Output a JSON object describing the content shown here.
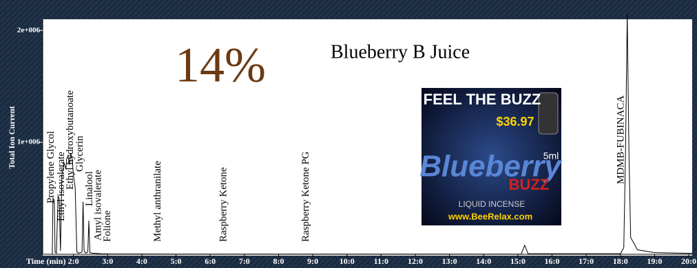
{
  "chart_data": {
    "type": "line",
    "title": "Blueberry B Juice",
    "big_label": "14%",
    "y_label": "Total Ion Current",
    "x_label": "Time (min)",
    "color": "#000000",
    "xlim": [
      1.1,
      20.1
    ],
    "ylim": [
      0,
      2100000
    ],
    "xticks": [
      {
        "value": 2,
        "label": "2:0"
      },
      {
        "value": 3,
        "label": "3:0"
      },
      {
        "value": 4,
        "label": "4:0"
      },
      {
        "value": 5,
        "label": "5:0"
      },
      {
        "value": 6,
        "label": "6:0"
      },
      {
        "value": 7,
        "label": "7:0"
      },
      {
        "value": 8,
        "label": "8:0"
      },
      {
        "value": 9,
        "label": "9:0"
      },
      {
        "value": 10,
        "label": "10:0"
      },
      {
        "value": 11,
        "label": "11:0"
      },
      {
        "value": 12,
        "label": "12:0"
      },
      {
        "value": 13,
        "label": "13:0"
      },
      {
        "value": 14,
        "label": "14:0"
      },
      {
        "value": 15,
        "label": "15:0"
      },
      {
        "value": 16,
        "label": "16:0"
      },
      {
        "value": 17,
        "label": "17:0"
      },
      {
        "value": 18,
        "label": "18:0"
      },
      {
        "value": 19,
        "label": "19:0"
      },
      {
        "value": 20,
        "label": "20:0"
      }
    ],
    "yticks": [
      {
        "value": 1000000,
        "label": "1e+006"
      },
      {
        "value": 2000000,
        "label": "2e+006"
      }
    ],
    "x": [
      1.1,
      1.38,
      1.4,
      1.44,
      1.46,
      1.5,
      1.55,
      1.58,
      1.62,
      1.66,
      1.72,
      1.78,
      1.8,
      1.84,
      1.88,
      1.92,
      1.96,
      2.0,
      2.05,
      2.1,
      2.15,
      2.2,
      2.25,
      2.28,
      2.31,
      2.36,
      2.42,
      2.45,
      2.48,
      2.55,
      2.8,
      3.0,
      5.0,
      15.1,
      15.2,
      15.3,
      18.0,
      18.1,
      18.15,
      18.2,
      18.25,
      18.3,
      18.5,
      19.0,
      20.1
    ],
    "values": [
      0,
      0,
      500000,
      480000,
      20000,
      10000,
      520000,
      500000,
      30000,
      700000,
      820000,
      760000,
      850000,
      880000,
      800000,
      900000,
      860000,
      700000,
      600000,
      20000,
      10000,
      15000,
      20000,
      470000,
      30000,
      10000,
      20000,
      300000,
      15000,
      10000,
      5000,
      3000,
      2000,
      2000,
      80000,
      5000,
      5000,
      60000,
      900000,
      2150000,
      900000,
      150000,
      40000,
      15000,
      8000
    ],
    "annotations": [
      {
        "text": "Propylene Glycol",
        "x": 1.35
      },
      {
        "text": "Ethyl isovalerate",
        "x": 1.66
      },
      {
        "text": "Ethyl hydroxybutanoate",
        "x": 1.92
      },
      {
        "text": "Glycerin",
        "x": 2.2
      },
      {
        "text": "Linalool",
        "x": 2.48
      },
      {
        "text": "Amyl isovalerate",
        "x": 2.73
      },
      {
        "text": "Folione",
        "x": 3.01
      },
      {
        "text": "Methyl anthranilate",
        "x": 4.48
      },
      {
        "text": "Raspberry Ketone",
        "x": 6.4
      },
      {
        "text": "Raspberry Ketone PG",
        "x": 8.81
      },
      {
        "text": "MDMB-FUBINACA",
        "x": 18.03
      }
    ],
    "inset_texts": [
      "FEEL THE BUZZ",
      "$36.97",
      "5ml",
      "Blueberry",
      "BUZZ",
      "LIQUID INCENSE",
      "www.BeeRelax.com"
    ]
  }
}
